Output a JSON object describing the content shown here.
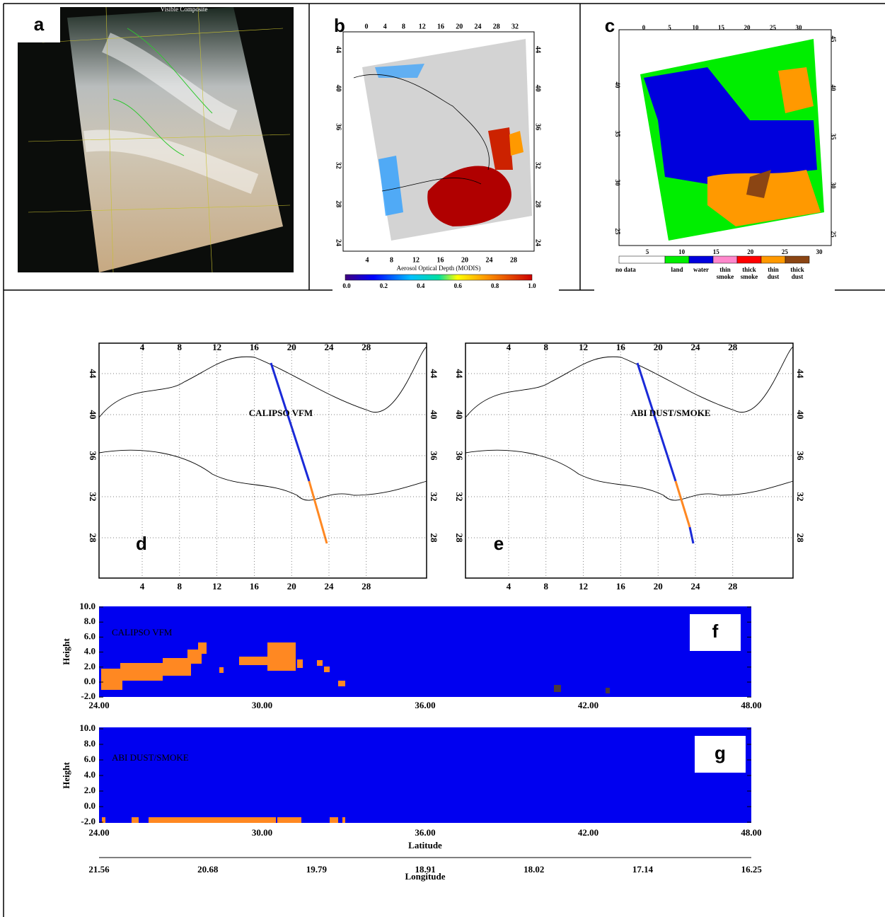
{
  "panel_a": {
    "label": "a",
    "image_caption": "Visible Composite"
  },
  "panel_b": {
    "label": "b",
    "top_ticks": [
      "0",
      "4",
      "8",
      "12",
      "16",
      "20",
      "24",
      "28",
      "32"
    ],
    "bottom_ticks": [
      "4",
      "8",
      "12",
      "16",
      "20",
      "24",
      "28"
    ],
    "left_ticks": [
      "44",
      "40",
      "36",
      "32",
      "28",
      "24"
    ],
    "right_ticks": [
      "44",
      "40",
      "36",
      "32",
      "28",
      "24"
    ],
    "colorbar_ticks": [
      "0.0",
      "0.2",
      "0.4",
      "0.6",
      "0.8",
      "1.0"
    ],
    "colorbar_title": "Aerosol Optical Depth (MODIS)"
  },
  "panel_c": {
    "label": "c",
    "top_ticks": [
      "0",
      "5",
      "10",
      "15",
      "20",
      "25",
      "30"
    ],
    "bottom_ticks": [
      "5",
      "10",
      "15",
      "20",
      "25",
      "30"
    ],
    "left_ticks": [
      "40",
      "35",
      "30",
      "25"
    ],
    "right_ticks": [
      "45",
      "40",
      "35",
      "30",
      "25"
    ],
    "legend": [
      {
        "lines": [
          "no data"
        ],
        "color": "#ffffff"
      },
      {
        "lines": [
          "land"
        ],
        "color": "#00ee00"
      },
      {
        "lines": [
          "water"
        ],
        "color": "#0000dd"
      },
      {
        "lines": [
          "thin",
          "smoke"
        ],
        "color": "#ff88cc"
      },
      {
        "lines": [
          "thick",
          "smoke"
        ],
        "color": "#ff0000"
      },
      {
        "lines": [
          "thin",
          "dust"
        ],
        "color": "#ff9900"
      },
      {
        "lines": [
          "thick",
          "dust"
        ],
        "color": "#8b4513"
      }
    ]
  },
  "panel_d": {
    "label": "d",
    "title": "CALIPSO VFM",
    "top_ticks": [
      "4",
      "8",
      "12",
      "16",
      "20",
      "24",
      "28"
    ],
    "bottom_ticks": [
      "4",
      "8",
      "12",
      "16",
      "20",
      "24",
      "28"
    ],
    "left_ticks": [
      "44",
      "40",
      "36",
      "32",
      "28"
    ],
    "right_ticks": [
      "44",
      "40",
      "36",
      "32",
      "28"
    ]
  },
  "panel_e": {
    "label": "e",
    "title": "ABI DUST/SMOKE",
    "top_ticks": [
      "4",
      "8",
      "12",
      "16",
      "20",
      "24",
      "28"
    ],
    "bottom_ticks": [
      "4",
      "8",
      "12",
      "16",
      "20",
      "24",
      "28"
    ],
    "left_ticks": [
      "44",
      "40",
      "36",
      "32",
      "28"
    ],
    "right_ticks": [
      "44",
      "40",
      "36",
      "32",
      "28"
    ]
  },
  "panel_f": {
    "label": "f",
    "title": "CALIPSO VFM",
    "y_label": "Height",
    "y_ticks": [
      "10.0",
      "8.0",
      "6.0",
      "4.0",
      "2.0",
      "0.0",
      "-2.0"
    ],
    "x_ticks": [
      "24.00",
      "30.00",
      "36.00",
      "42.00",
      "48.00"
    ]
  },
  "panel_g": {
    "label": "g",
    "title": "ABI DUST/SMOKE",
    "y_label": "Height",
    "y_ticks": [
      "10.0",
      "8.0",
      "6.0",
      "4.0",
      "2.0",
      "0.0",
      "-2.0"
    ],
    "x_ticks": [
      "24.00",
      "30.00",
      "36.00",
      "42.00",
      "48.00"
    ],
    "x_label": "Latitude",
    "lon_ticks": [
      "21.56",
      "20.68",
      "19.79",
      "18.91",
      "18.02",
      "17.14",
      "16.25"
    ],
    "lon_label": "Longitude"
  }
}
